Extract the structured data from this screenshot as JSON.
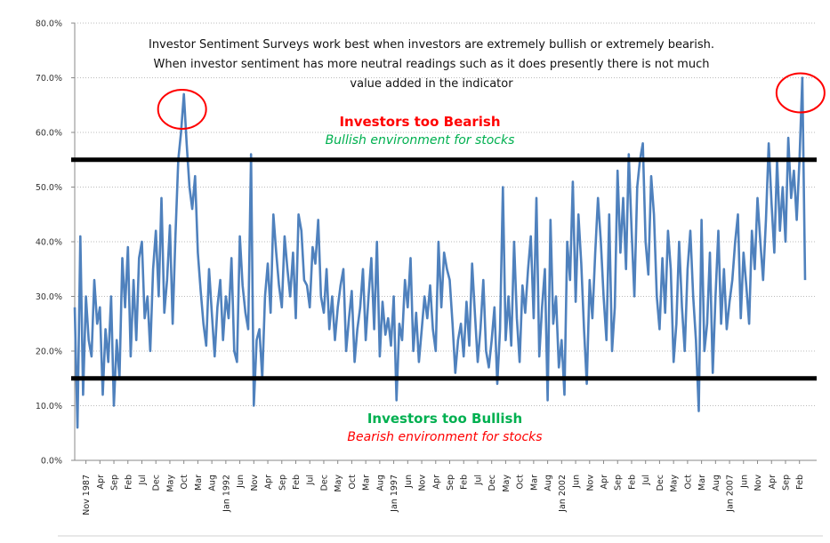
{
  "chart_data": {
    "type": "line",
    "title": "",
    "xlabel": "",
    "ylabel": "",
    "ylim": [
      0,
      80
    ],
    "y_tick_labels": [
      "0.0%",
      "10.0%",
      "20.0%",
      "30.0%",
      "40.0%",
      "50.0%",
      "60.0%",
      "70.0%",
      "80.0%"
    ],
    "y_ticks": [
      0,
      10,
      20,
      30,
      40,
      50,
      60,
      70,
      80
    ],
    "grid": "horizontal dotted",
    "x_start": "1987-07",
    "x_end": "2009-04",
    "x_tick_start": "1987-11",
    "x_tick_step_months": 5,
    "x_tick_labels": [
      "Nov 1987",
      "Apr",
      "Sep",
      "Feb",
      "Jul",
      "Dec",
      "May",
      "Oct",
      "Mar",
      "Aug",
      "Jan 1992",
      "Jun",
      "Nov",
      "Apr",
      "Sep",
      "Feb",
      "Jul",
      "Dec",
      "May",
      "Oct",
      "Mar",
      "Aug",
      "Jan 1997",
      "Jun",
      "Nov",
      "Apr",
      "Sep",
      "Feb",
      "Jul",
      "Dec",
      "May",
      "Oct",
      "Mar",
      "Aug",
      "Jan 2002",
      "Jun",
      "Nov",
      "Apr",
      "Sep",
      "Feb",
      "Jul",
      "Dec",
      "May",
      "Oct",
      "Mar",
      "Aug",
      "Jan 2007",
      "Jun",
      "Nov",
      "Apr",
      "Sep",
      "Feb"
    ],
    "series_color": "#4f81bd",
    "values_monthly_from_1987_07": [
      28,
      6,
      41,
      12,
      30,
      22,
      19,
      33,
      25,
      28,
      12,
      24,
      18,
      30,
      10,
      22,
      15,
      37,
      28,
      39,
      19,
      33,
      22,
      37,
      40,
      26,
      30,
      20,
      35,
      42,
      30,
      48,
      27,
      33,
      43,
      25,
      41,
      55,
      60,
      67,
      58,
      50,
      46,
      52,
      38,
      31,
      25,
      21,
      35,
      27,
      19,
      28,
      33,
      22,
      30,
      26,
      37,
      20,
      18,
      41,
      32,
      27,
      24,
      56,
      10,
      22,
      24,
      15,
      30,
      36,
      27,
      45,
      38,
      32,
      28,
      41,
      35,
      30,
      38,
      26,
      45,
      42,
      33,
      32,
      28,
      39,
      36,
      44,
      30,
      27,
      35,
      24,
      30,
      22,
      28,
      32,
      35,
      20,
      26,
      31,
      18,
      24,
      28,
      35,
      22,
      30,
      37,
      24,
      40,
      19,
      29,
      23,
      26,
      21,
      30,
      11,
      25,
      22,
      33,
      28,
      37,
      20,
      27,
      18,
      24,
      30,
      26,
      32,
      24,
      20,
      40,
      28,
      38,
      35,
      33,
      25,
      16,
      22,
      25,
      19,
      29,
      21,
      36,
      27,
      18,
      24,
      33,
      20,
      17,
      22,
      28,
      14,
      24,
      50,
      22,
      30,
      21,
      40,
      26,
      18,
      32,
      27,
      35,
      41,
      26,
      48,
      19,
      28,
      35,
      11,
      44,
      25,
      30,
      17,
      22,
      12,
      40,
      33,
      51,
      29,
      45,
      36,
      24,
      14,
      33,
      26,
      38,
      48,
      40,
      30,
      22,
      45,
      20,
      28,
      53,
      38,
      48,
      35,
      56,
      42,
      30,
      50,
      55,
      58,
      40,
      34,
      52,
      45,
      30,
      24,
      37,
      27,
      42,
      35,
      18,
      25,
      40,
      28,
      20,
      35,
      42,
      30,
      22,
      9,
      44,
      20,
      25,
      38,
      16,
      30,
      42,
      25,
      35,
      24,
      29,
      33,
      40,
      45,
      26,
      38,
      32,
      25,
      42,
      35,
      48,
      40,
      33,
      44,
      58,
      47,
      38,
      55,
      42,
      50,
      40,
      59,
      48,
      53,
      44,
      55,
      70,
      33
    ],
    "reference_lines": [
      {
        "value": 55,
        "color": "#000000"
      },
      {
        "value": 15,
        "color": "#000000"
      }
    ],
    "highlight_circles": [
      {
        "date": "1990-10",
        "value": 67,
        "color": "#ff0000"
      },
      {
        "date": "2009-03",
        "value": 70,
        "color": "#ff0000"
      }
    ],
    "annotations": {
      "note_lines": [
        "Investor Sentiment Surveys work best when investors are extremely bullish or extremely bearish.",
        "When investor sentiment has more neutral readings such as it does presently there is not much",
        "value added in the indicator"
      ],
      "upper_title": "Investors too Bearish",
      "upper_subtitle": "Bullish environment for stocks",
      "lower_title": "Investors too Bullish",
      "lower_subtitle": "Bearish environment for stocks",
      "upper_title_color": "#ff0000",
      "upper_subtitle_color": "#00b050",
      "lower_title_color": "#00b050",
      "lower_subtitle_color": "#ff0000"
    }
  }
}
